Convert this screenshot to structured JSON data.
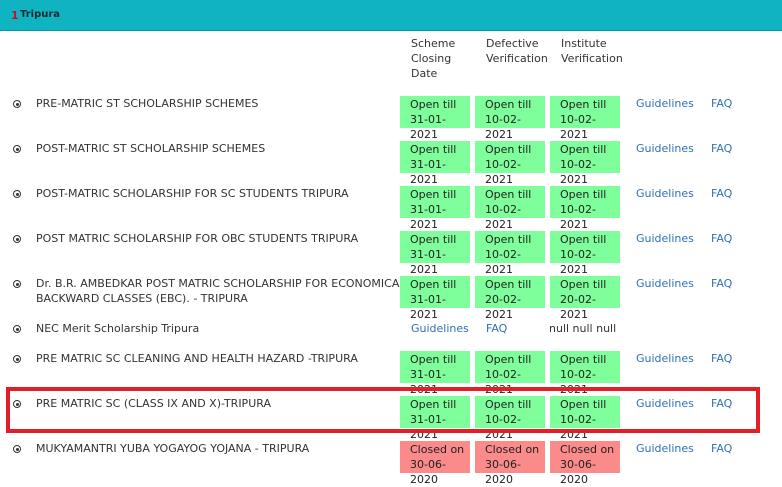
{
  "header": {
    "number": "1",
    "title": "Tripura"
  },
  "columns": {
    "scheme_closing_date": [
      "Scheme",
      "Closing",
      "Date"
    ],
    "defective_verification": [
      "Defective",
      "Verification"
    ],
    "institute_verification": [
      "Institute",
      "Verification"
    ]
  },
  "rows": [
    {
      "name": [
        "PRE-MATRIC ST SCHOLARSHIP SCHEMES"
      ],
      "scheme": [
        "Open till",
        "31-01-2021"
      ],
      "defective": [
        "Open till",
        "10-02-2021"
      ],
      "institute": [
        "Open till",
        "10-02-2021"
      ],
      "guidelines": "Guidelines",
      "faq": "FAQ"
    },
    {
      "name": [
        "POST-MATRIC ST SCHOLARSHIP SCHEMES"
      ],
      "scheme": [
        "Open till",
        "31-01-2021"
      ],
      "defective": [
        "Open till",
        "10-02-2021"
      ],
      "institute": [
        "Open till",
        "10-02-2021"
      ],
      "guidelines": "Guidelines",
      "faq": "FAQ"
    },
    {
      "name": [
        "POST-MATRIC SCHOLARSHIP FOR SC STUDENTS TRIPURA"
      ],
      "scheme": [
        "Open till",
        "31-01-2021"
      ],
      "defective": [
        "Open till",
        "10-02-2021"
      ],
      "institute": [
        "Open till",
        "10-02-2021"
      ],
      "guidelines": "Guidelines",
      "faq": "FAQ"
    },
    {
      "name": [
        "POST MATRIC SCHOLARSHIP FOR OBC STUDENTS TRIPURA"
      ],
      "scheme": [
        "Open till",
        "31-01-2021"
      ],
      "defective": [
        "Open till",
        "10-02-2021"
      ],
      "institute": [
        "Open till",
        "10-02-2021"
      ],
      "guidelines": "Guidelines",
      "faq": "FAQ"
    },
    {
      "name": [
        "Dr. B.R. AMBEDKAR POST MATRIC SCHOLARSHIP FOR ECONOMICALLY",
        "BACKWARD CLASSES (EBC). - TRIPURA"
      ],
      "scheme": [
        "Open till",
        "31-01-2021"
      ],
      "defective": [
        "Open till",
        "20-02-2021"
      ],
      "institute": [
        "Open till",
        "20-02-2021"
      ],
      "guidelines": "Guidelines",
      "faq": "FAQ"
    },
    {
      "name": [
        "NEC Merit Scholarship Tripura"
      ],
      "guidelines": "Guidelines",
      "faq": "FAQ",
      "null_text": "null null null"
    },
    {
      "name": [
        "PRE MATRIC SC CLEANING AND HEALTH HAZARD -TRIPURA"
      ],
      "scheme": [
        "Open till",
        "31-01-2021"
      ],
      "defective": [
        "Open till",
        "10-02-2021"
      ],
      "institute": [
        "Open till",
        "10-02-2021"
      ],
      "guidelines": "Guidelines",
      "faq": "FAQ"
    },
    {
      "name": [
        "PRE MATRIC SC (CLASS IX AND X)-TRIPURA"
      ],
      "scheme": [
        "Open till",
        "31-01-2021"
      ],
      "defective": [
        "Open till",
        "10-02-2021"
      ],
      "institute": [
        "Open till",
        "10-02-2021"
      ],
      "guidelines": "Guidelines",
      "faq": "FAQ"
    },
    {
      "name": [
        "MUKYAMANTRI YUBA YOGAYOG YOJANA - TRIPURA"
      ],
      "scheme": [
        "Closed on",
        "30-06-2020"
      ],
      "defective": [
        "Closed on",
        "30-06-2020"
      ],
      "institute": [
        "Closed on",
        "30-06-2020"
      ],
      "guidelines": "Guidelines",
      "faq": "FAQ",
      "state": "closed"
    }
  ]
}
